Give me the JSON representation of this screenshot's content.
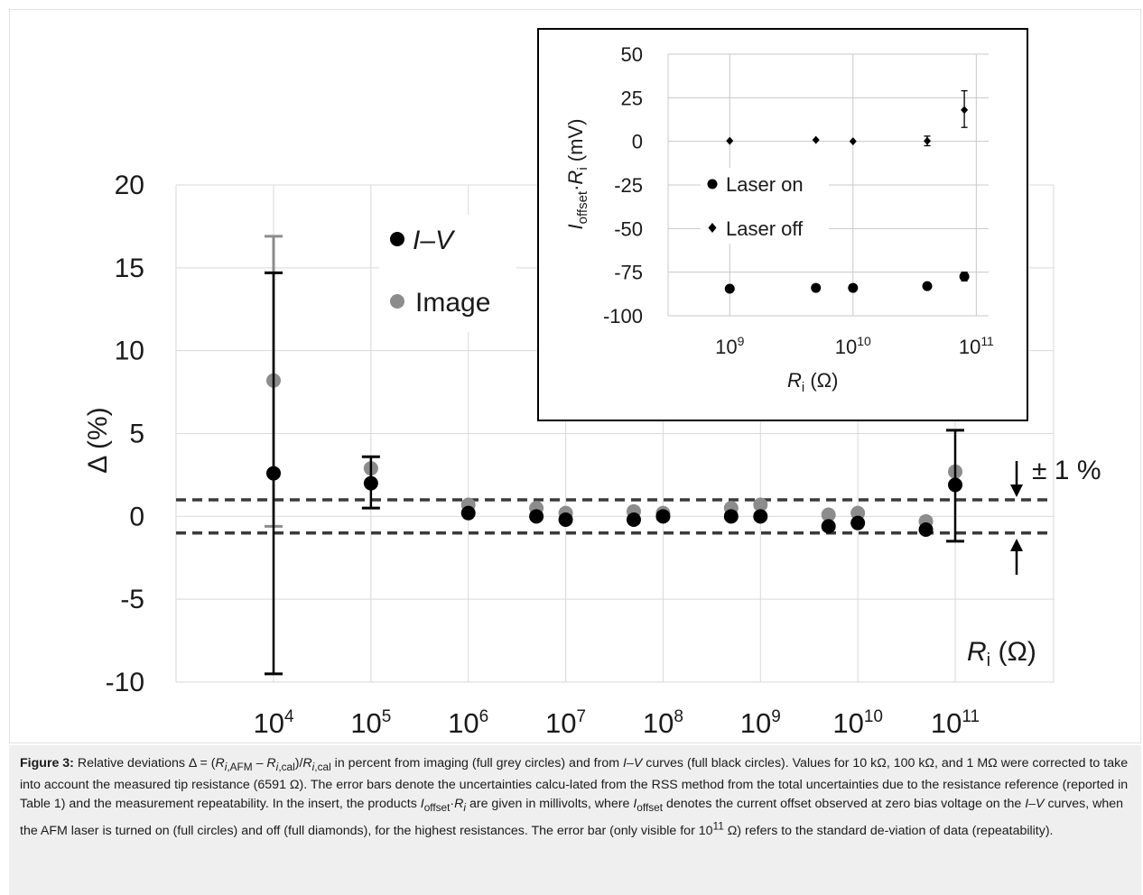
{
  "chart_data": [
    {
      "type": "scatter",
      "title": "",
      "x_scale": "log",
      "xlabel": {
        "main": "R",
        "sub": "i",
        "unit": "(Ω)"
      },
      "ylabel": "Δ (%)",
      "ylim": [
        -10,
        20
      ],
      "y_ticks": [
        "-10",
        "-5",
        "0",
        "5",
        "10",
        "15",
        "20"
      ],
      "x_ticks": [
        {
          "base": "10",
          "exp": "4"
        },
        {
          "base": "10",
          "exp": "5"
        },
        {
          "base": "10",
          "exp": "6"
        },
        {
          "base": "10",
          "exp": "7"
        },
        {
          "base": "10",
          "exp": "8"
        },
        {
          "base": "10",
          "exp": "9"
        },
        {
          "base": "10",
          "exp": "10"
        },
        {
          "base": "10",
          "exp": "11"
        }
      ],
      "grid": true,
      "legend_position": "top-left",
      "series": [
        {
          "name": "I–V",
          "color": "#000000",
          "marker": "circle",
          "points": [
            {
              "x": 10000,
              "y": 2.6,
              "err_low": -9.5,
              "err_high": 14.7
            },
            {
              "x": 100000,
              "y": 2.0,
              "err_low": 0.5,
              "err_high": 3.6
            },
            {
              "x": 1000000,
              "y": 0.2
            },
            {
              "x": 5000000,
              "y": 0.0
            },
            {
              "x": 10000000,
              "y": -0.2
            },
            {
              "x": 50000000,
              "y": -0.2
            },
            {
              "x": 100000000,
              "y": 0.0
            },
            {
              "x": 500000000,
              "y": 0.0
            },
            {
              "x": 1000000000,
              "y": 0.0
            },
            {
              "x": 5000000000,
              "y": -0.6
            },
            {
              "x": 10000000000,
              "y": -0.4
            },
            {
              "x": 50000000000,
              "y": -0.8
            },
            {
              "x": 100000000000,
              "y": 1.9,
              "err_low": -1.5,
              "err_high": 5.2
            }
          ]
        },
        {
          "name": "Image",
          "color": "#8c8c8c",
          "marker": "circle",
          "points": [
            {
              "x": 10000,
              "y": 8.2,
              "err_low": -0.6,
              "err_high": 16.9
            },
            {
              "x": 100000,
              "y": 2.9
            },
            {
              "x": 1000000,
              "y": 0.7
            },
            {
              "x": 5000000,
              "y": 0.5
            },
            {
              "x": 10000000,
              "y": 0.2
            },
            {
              "x": 50000000,
              "y": 0.3
            },
            {
              "x": 100000000,
              "y": 0.2
            },
            {
              "x": 500000000,
              "y": 0.5
            },
            {
              "x": 1000000000,
              "y": 0.7
            },
            {
              "x": 5000000000,
              "y": 0.1
            },
            {
              "x": 10000000000,
              "y": 0.2
            },
            {
              "x": 50000000000,
              "y": -0.3
            },
            {
              "x": 100000000000,
              "y": 2.7
            }
          ]
        }
      ],
      "reference_lines": [
        1.0,
        -1.0
      ],
      "annotation": "± 1 %"
    },
    {
      "type": "scatter",
      "title": "",
      "x_scale": "log",
      "ylabel": {
        "main": "I",
        "sub1": "offset",
        "dot": "·",
        "main2": "R",
        "sub2": "i",
        "unit": " (mV)"
      },
      "xlabel": {
        "main": "R",
        "sub": "i",
        "unit": " (Ω)"
      },
      "ylim": [
        -100,
        50
      ],
      "y_ticks": [
        "50",
        "25",
        "0",
        "-25",
        "-50",
        "-75",
        "-100"
      ],
      "x_ticks": [
        {
          "base": "10",
          "exp": "9"
        },
        {
          "base": "10",
          "exp": "10"
        },
        {
          "base": "10",
          "exp": "11"
        }
      ],
      "grid": true,
      "legend_position": "middle-left",
      "series": [
        {
          "name": "Laser on",
          "marker": "circle",
          "points": [
            {
              "x": 1000000000,
              "y": -84.5
            },
            {
              "x": 5000000000,
              "y": -84.0
            },
            {
              "x": 10000000000,
              "y": -84.0
            },
            {
              "x": 40000000000,
              "y": -83.0
            },
            {
              "x": 80000000000,
              "y": -77.5,
              "err_low": -80.0,
              "err_high": -75.0
            }
          ]
        },
        {
          "name": "Laser off",
          "marker": "diamond",
          "points": [
            {
              "x": 1000000000,
              "y": 0.3
            },
            {
              "x": 5000000000,
              "y": 0.8
            },
            {
              "x": 10000000000,
              "y": 0.0
            },
            {
              "x": 40000000000,
              "y": 0.2,
              "err_low": -2.5,
              "err_high": 3.0
            },
            {
              "x": 80000000000,
              "y": 18.0,
              "err_low": 8.0,
              "err_high": 29.0
            }
          ]
        }
      ]
    }
  ],
  "caption": {
    "label": "Figure 3:",
    "text_html": " Relative deviations Δ = (<i>R</i><sub><i>i</i>,AFM</sub> – <i>R</i><sub><i>i</i>,cal</sub>)/<i>R</i><sub><i>i</i>,cal</sub> in percent from imaging (full grey circles) and from <i>I–V</i> curves (full black circles). Values for 10 kΩ, 100 kΩ, and 1 MΩ were corrected to take into account the measured tip resistance (6591 Ω). The error bars denote the uncertainties calcu-lated from the RSS method from the total uncertainties due to the resistance reference (reported in Table 1) and the measurement repeatability. In the insert, the products <i>I</i><sub>offset</sub>·<i>R<sub>i</sub></i> are given in millivolts, where <i>I</i><sub>offset</sub> denotes the current offset observed at zero bias voltage on the <i>I–V</i> curves, when the AFM laser is turned on (full circles) and off (full diamonds), for the highest resistances. The error bar (only visible for 10<sup>11</sup> Ω) refers to the standard de-viation of data (repeatability)."
  }
}
